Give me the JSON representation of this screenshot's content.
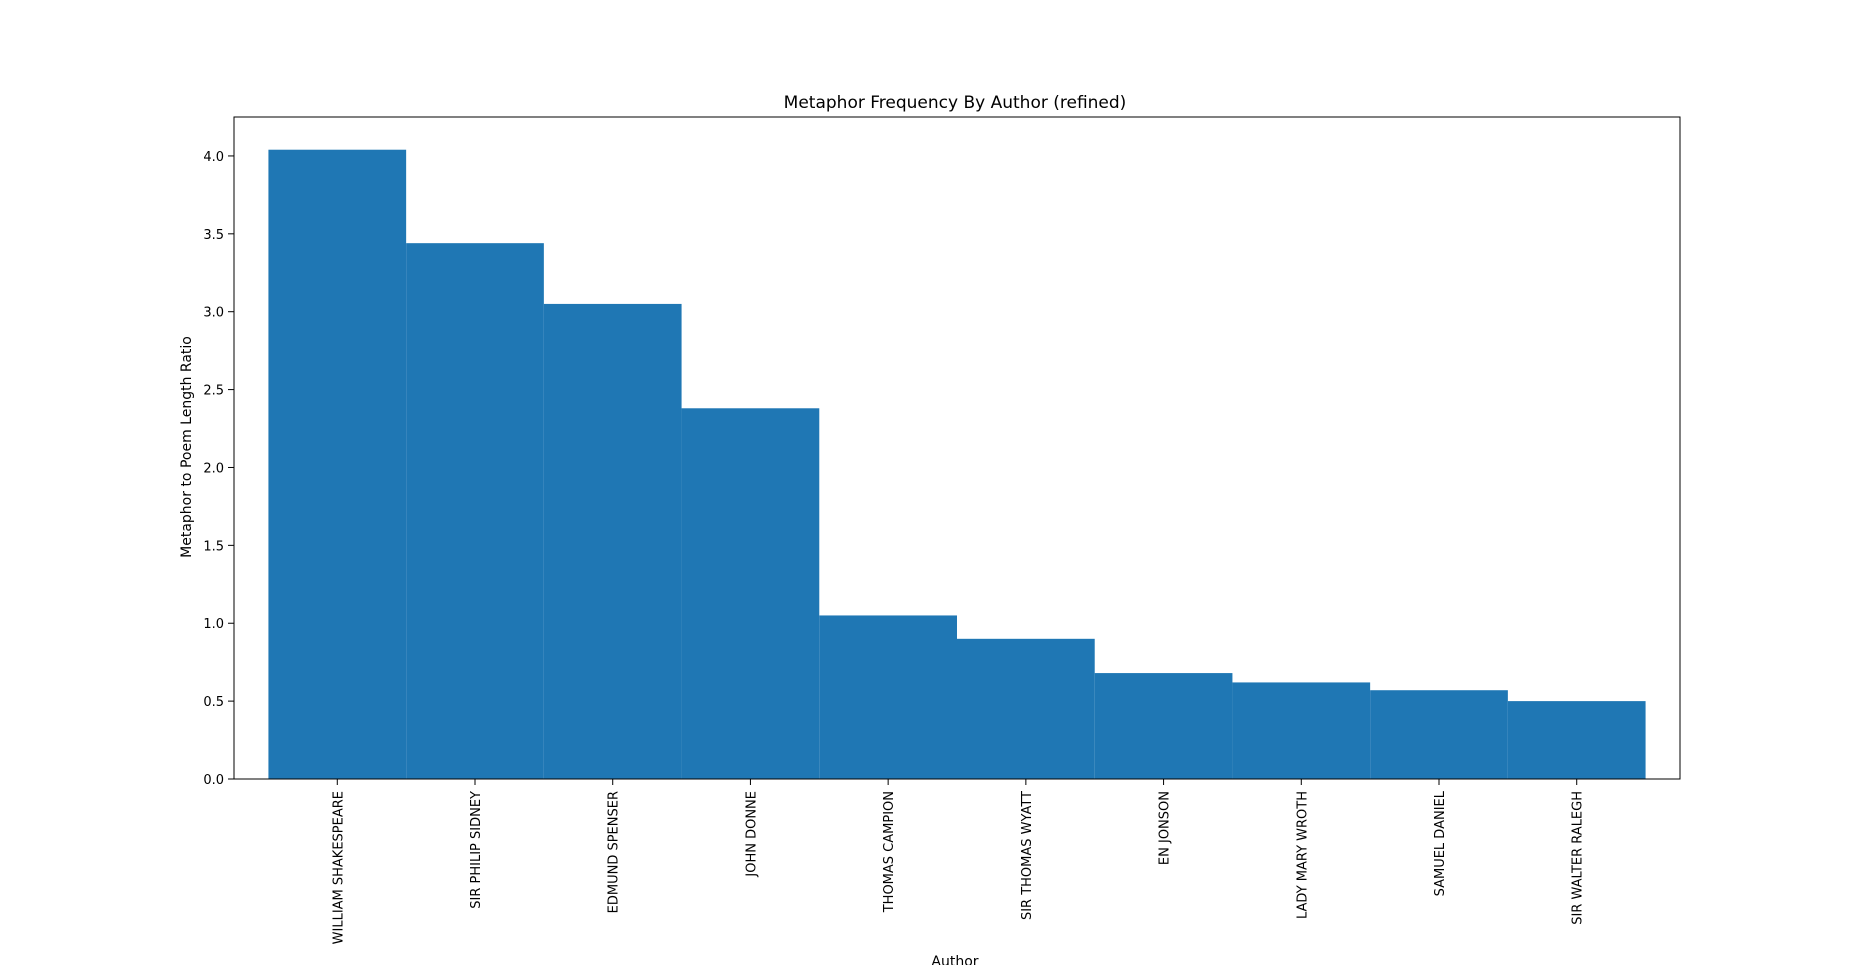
{
  "chart_data": {
    "type": "bar",
    "title": "Metaphor Frequency By Author (refined)",
    "xlabel": "Author",
    "ylabel": "Metaphor to Poem Length Ratio",
    "categories": [
      "WILLIAM SHAKESPEARE",
      "SIR PHILIP SIDNEY",
      "EDMUND SPENSER",
      "JOHN DONNE",
      "THOMAS CAMPION",
      "SIR THOMAS WYATT",
      "EN JONSON",
      "LADY MARY WROTH",
      "SAMUEL DANIEL",
      "SIR WALTER RALEGH"
    ],
    "values": [
      4.04,
      3.44,
      3.05,
      2.38,
      1.05,
      0.9,
      0.68,
      0.62,
      0.57,
      0.5
    ],
    "ylim": [
      0,
      4.25
    ],
    "yticks": [
      "0.0",
      "0.5",
      "1.0",
      "1.5",
      "2.0",
      "2.5",
      "3.0",
      "3.5",
      "4.0"
    ],
    "bar_color": "#1f77b4",
    "grid": false,
    "legend": false
  }
}
